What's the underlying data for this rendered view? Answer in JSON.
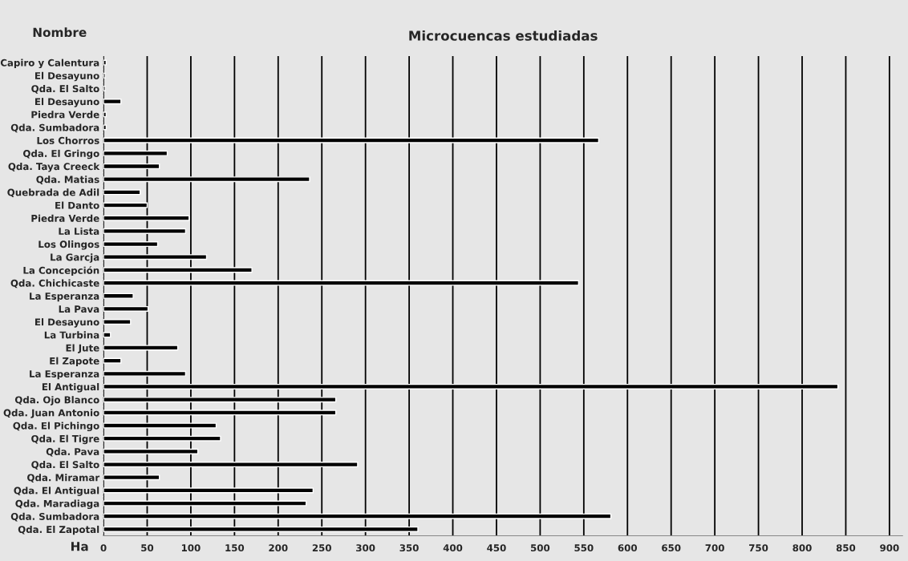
{
  "chart_data": {
    "type": "bar",
    "orientation": "horizontal",
    "title": "Microcuencas estudiadas",
    "ylabel": "Nombre",
    "xlabel": "Ha",
    "categories": [
      "Capiro y Calentura",
      "El Desayuno",
      "Qda. El Salto",
      "El Desayuno",
      "Piedra Verde",
      "Qda. Sumbadora",
      "Los Chorros",
      "Qda. El Gringo",
      "Qda. Taya Creeck",
      "Qda. Matias",
      "Quebrada de Adil",
      "El Danto",
      "Piedra Verde",
      "La Lista",
      "Los Olingos",
      "La Garcja",
      "La Concepción",
      "Qda. Chichicaste",
      "La Esperanza",
      "La Pava",
      "El Desayuno",
      "La Turbina",
      "El Jute",
      "El Zapote",
      "La Esperanza",
      "El Antigual",
      "Qda. Ojo Blanco",
      "Qda. Juan Antonio",
      "Qda. El Pichingo",
      "Qda. El Tigre",
      "Qda. Pava",
      "Qda. El Salto",
      "Qda. Miramar",
      "Qda. El Antigual",
      "Qda. Maradiaga",
      "Qda. Sumbadora",
      "Qda. El Zapotal"
    ],
    "values": [
      3,
      2,
      2,
      20,
      3,
      3,
      567,
      73,
      64,
      236,
      42,
      50,
      98,
      94,
      62,
      118,
      170,
      544,
      34,
      51,
      31,
      8,
      85,
      20,
      94,
      841,
      266,
      266,
      129,
      134,
      108,
      291,
      64,
      240,
      232,
      581,
      360
    ],
    "color": "#000000",
    "xlim": [
      0,
      915
    ],
    "xticks": [
      0,
      50,
      100,
      150,
      200,
      250,
      300,
      350,
      400,
      450,
      500,
      550,
      600,
      650,
      700,
      750,
      800,
      850,
      900
    ],
    "grid": "x"
  }
}
